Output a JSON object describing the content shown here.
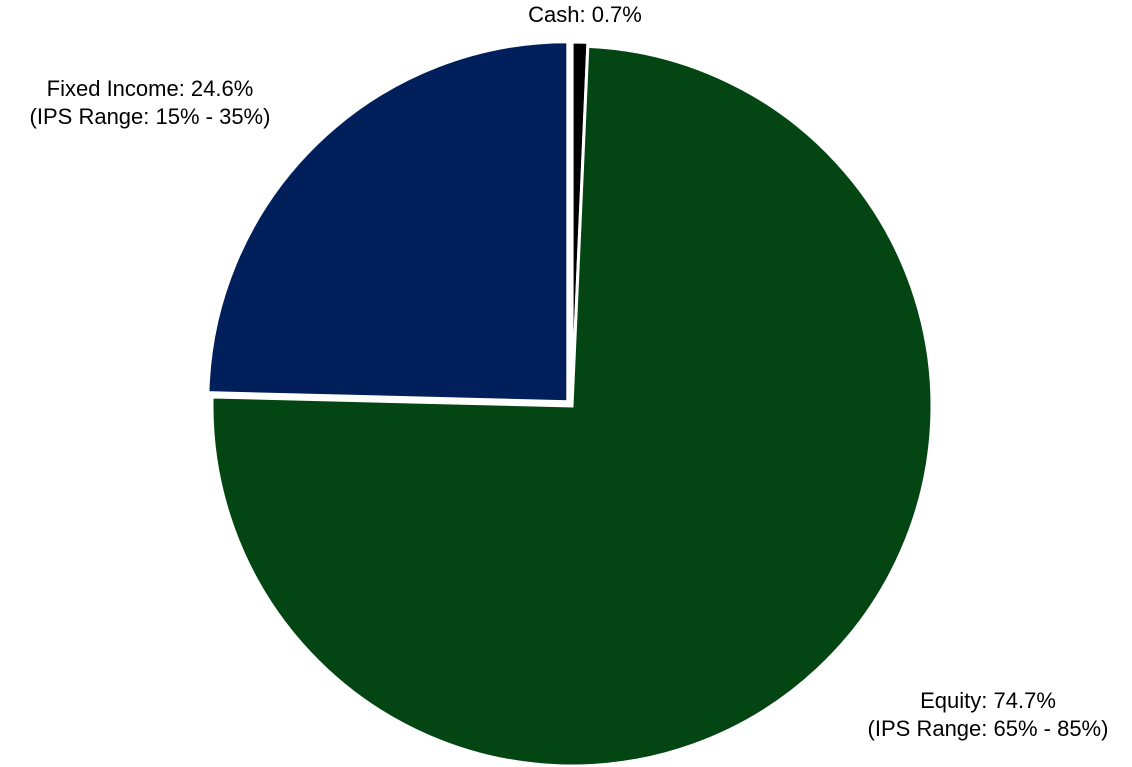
{
  "chart_data": {
    "type": "pie",
    "title": "",
    "slices": [
      {
        "name": "Cash",
        "value": 0.7,
        "color": "#000000",
        "label_lines": [
          "Cash: 0.7%"
        ]
      },
      {
        "name": "Equity",
        "value": 74.7,
        "color": "#034613",
        "label_lines": [
          "Equity: 74.7%",
          "(IPS Range: 65% - 85%)"
        ]
      },
      {
        "name": "Fixed Income",
        "value": 24.6,
        "color": "#011f5b",
        "label_lines": [
          "Fixed Income: 24.6%",
          "(IPS Range: 15% - 35%)"
        ]
      }
    ],
    "start_angle_deg": 0,
    "direction": "clockwise",
    "legend": "none"
  }
}
